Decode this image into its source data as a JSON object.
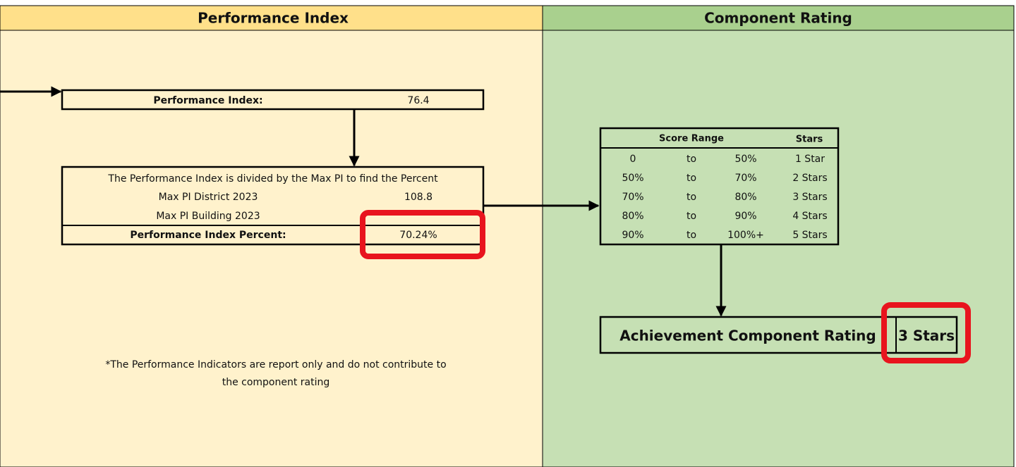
{
  "panels": {
    "left": {
      "title": "Performance Index"
    },
    "right": {
      "title": "Component Rating"
    }
  },
  "performance_index": {
    "label": "Performance Index:",
    "value": "76.4"
  },
  "calculation": {
    "description": "The Performance Index is divided by the Max PI to find the Percent",
    "rows": [
      {
        "label": "Max PI District 2023",
        "value": "108.8"
      },
      {
        "label": "Max PI Building 2023"
      }
    ],
    "result": {
      "label": "Performance Index Percent:",
      "value": "70.24%"
    }
  },
  "note": [
    "*The Performance Indicators are report only and do not contribute to",
    "the component rating"
  ],
  "score_table": {
    "headers": [
      "Score Range",
      "Stars"
    ],
    "rows": [
      [
        "0",
        "to",
        "50%",
        "1 Star"
      ],
      [
        "50%",
        "to",
        "70%",
        "2 Stars"
      ],
      [
        "70%",
        "to",
        "80%",
        "3 Stars"
      ],
      [
        "80%",
        "to",
        "90%",
        "4 Stars"
      ],
      [
        "90%",
        "to",
        "100%+",
        "5 Stars"
      ]
    ]
  },
  "rating": {
    "label": "Achievement Component Rating",
    "value": "3 Stars"
  }
}
